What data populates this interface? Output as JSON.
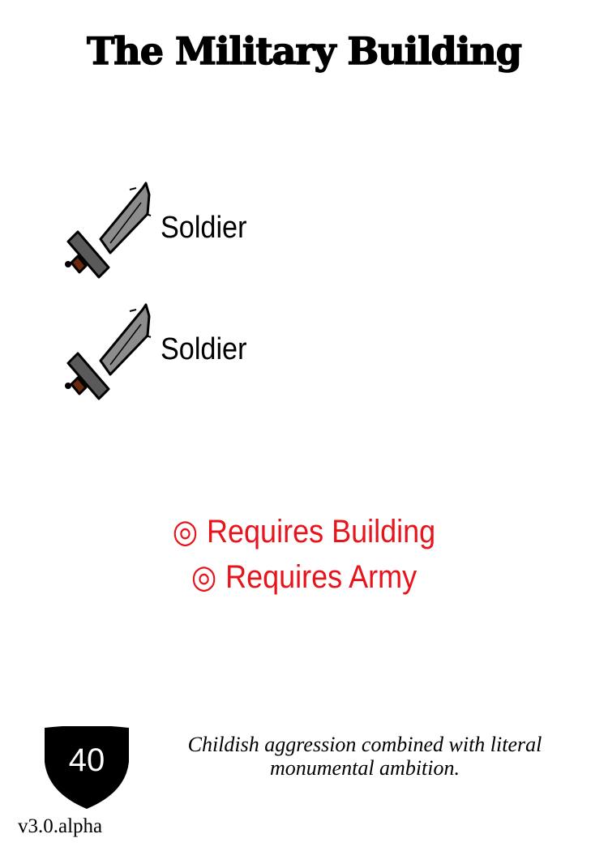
{
  "card": {
    "title": "The Military Building",
    "units": [
      {
        "label": "Soldier",
        "icon": "sword-icon"
      },
      {
        "label": "Soldier",
        "icon": "sword-icon"
      }
    ],
    "requirements": [
      {
        "glyph": "◎",
        "text": "Requires Building"
      },
      {
        "glyph": "◎",
        "text": "Requires Army"
      }
    ],
    "cost": "40",
    "flavor_line1": "Childish aggression combined with literal",
    "flavor_line2": "monumental ambition.",
    "version": "v3.0.alpha"
  },
  "colors": {
    "requirement": "#e8141c",
    "shield": "#000000",
    "blade": "#8c8c8c",
    "guard": "#5a5a5a",
    "grip": "#6b2a0e"
  }
}
